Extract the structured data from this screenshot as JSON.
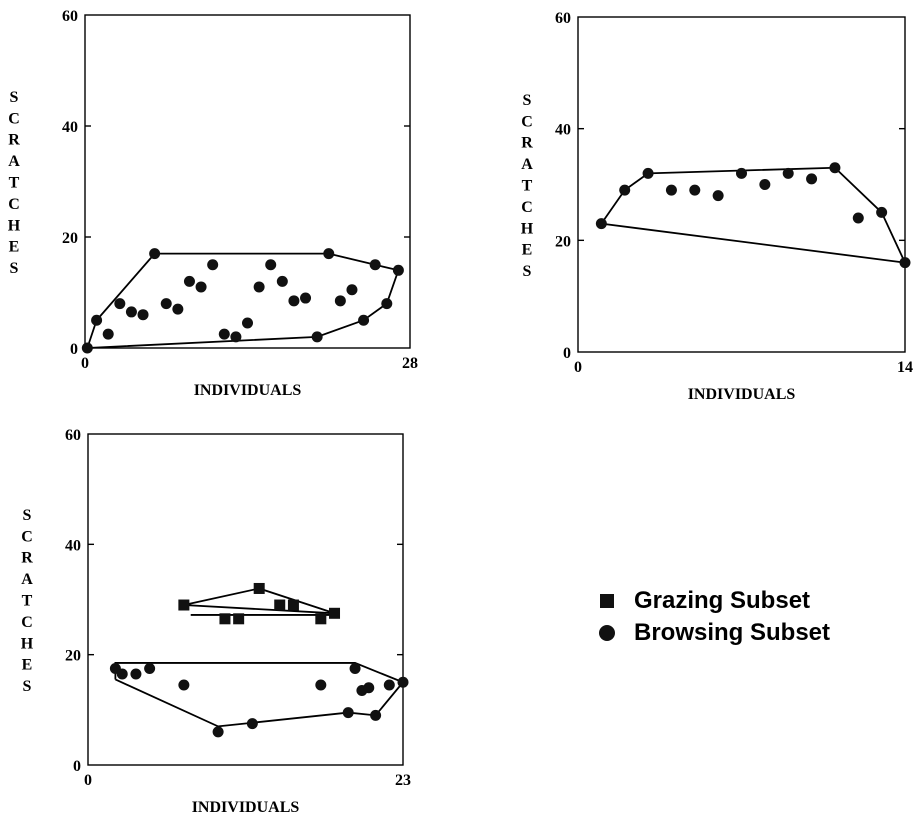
{
  "chart_data": [
    {
      "type": "scatter",
      "xlabel": "INDIVIDUALS",
      "ylabel": "SCRATCHES",
      "xlim": [
        0,
        28
      ],
      "ylim": [
        0,
        60
      ],
      "xticks": [
        "0",
        "28"
      ],
      "yticks": [
        "0",
        "20",
        "40",
        "60"
      ],
      "series": [
        {
          "marker": "circle",
          "points": [
            [
              0.2,
              0
            ],
            [
              1,
              5
            ],
            [
              2,
              2.5
            ],
            [
              3,
              8
            ],
            [
              4,
              6.5
            ],
            [
              5,
              6
            ],
            [
              6,
              17
            ],
            [
              7,
              8
            ],
            [
              8,
              7
            ],
            [
              9,
              12
            ],
            [
              10,
              11
            ],
            [
              11,
              15
            ],
            [
              12,
              2.5
            ],
            [
              13,
              2
            ],
            [
              14,
              4.5
            ],
            [
              15,
              11
            ],
            [
              16,
              15
            ],
            [
              17,
              12
            ],
            [
              18,
              8.5
            ],
            [
              19,
              9
            ],
            [
              20,
              2
            ],
            [
              21,
              17
            ],
            [
              22,
              8.5
            ],
            [
              23,
              10.5
            ],
            [
              24,
              5
            ],
            [
              25,
              15
            ],
            [
              26,
              8
            ],
            [
              27,
              14
            ]
          ],
          "hull": [
            [
              0.2,
              0
            ],
            [
              1,
              5
            ],
            [
              6,
              17
            ],
            [
              21,
              17
            ],
            [
              25,
              15
            ],
            [
              27,
              14
            ],
            [
              26,
              8
            ],
            [
              24,
              5
            ],
            [
              20,
              2
            ],
            [
              0.2,
              0
            ]
          ]
        }
      ]
    },
    {
      "type": "scatter",
      "xlabel": "INDIVIDUALS",
      "ylabel": "SCRATCHES",
      "xlim": [
        0,
        14
      ],
      "ylim": [
        0,
        60
      ],
      "xticks": [
        "0",
        "14"
      ],
      "yticks": [
        "0",
        "20",
        "40",
        "60"
      ],
      "series": [
        {
          "marker": "circle",
          "points": [
            [
              1,
              23
            ],
            [
              2,
              29
            ],
            [
              3,
              32
            ],
            [
              4,
              29
            ],
            [
              5,
              29
            ],
            [
              6,
              28
            ],
            [
              7,
              32
            ],
            [
              8,
              30
            ],
            [
              9,
              32
            ],
            [
              10,
              31
            ],
            [
              11,
              33
            ],
            [
              12,
              24
            ],
            [
              13,
              25
            ],
            [
              14,
              16
            ]
          ],
          "hull": [
            [
              1,
              23
            ],
            [
              2,
              29
            ],
            [
              3,
              32
            ],
            [
              11,
              33
            ],
            [
              13,
              25
            ],
            [
              14,
              16
            ],
            [
              1,
              23
            ]
          ]
        }
      ]
    },
    {
      "type": "scatter",
      "xlabel": "INDIVIDUALS",
      "ylabel": "SCRATCHES",
      "xlim": [
        0,
        23
      ],
      "ylim": [
        0,
        60
      ],
      "xticks": [
        "0",
        "23"
      ],
      "yticks": [
        "0",
        "20",
        "40",
        "60"
      ],
      "series": [
        {
          "name": "Grazing Subset",
          "marker": "square",
          "points": [
            [
              7,
              29
            ],
            [
              10,
              26.5
            ],
            [
              11,
              26.5
            ],
            [
              12.5,
              32
            ],
            [
              14,
              29
            ],
            [
              15,
              29
            ],
            [
              17,
              26.5
            ],
            [
              18,
              27.5
            ]
          ],
          "hull": [
            [
              7,
              29
            ],
            [
              12.5,
              32
            ],
            [
              18,
              27.5
            ],
            [
              7,
              29
            ]
          ],
          "extra_lines": [
            [
              [
                7.5,
                27.2
              ],
              [
                18,
                27.2
              ]
            ]
          ]
        },
        {
          "name": "Browsing Subset",
          "marker": "circle",
          "points": [
            [
              2,
              17.5
            ],
            [
              2.5,
              16.5
            ],
            [
              3.5,
              16.5
            ],
            [
              4.5,
              17.5
            ],
            [
              7,
              14.5
            ],
            [
              9.5,
              6
            ],
            [
              12,
              7.5
            ],
            [
              17,
              14.5
            ],
            [
              19,
              9.5
            ],
            [
              19.5,
              17.5
            ],
            [
              20,
              13.5
            ],
            [
              20.5,
              14
            ],
            [
              21,
              9
            ],
            [
              22,
              14.5
            ],
            [
              23,
              15
            ]
          ],
          "hull": [
            [
              2,
              15.5
            ],
            [
              9.5,
              7
            ],
            [
              19,
              9.5
            ],
            [
              21,
              9
            ],
            [
              23,
              15
            ],
            [
              19.5,
              18.5
            ],
            [
              2,
              18.5
            ],
            [
              2,
              15.5
            ]
          ]
        }
      ]
    }
  ],
  "legend": {
    "items": [
      {
        "label": "Grazing Subset",
        "marker": "square"
      },
      {
        "label": "Browsing Subset",
        "marker": "circle"
      }
    ]
  }
}
